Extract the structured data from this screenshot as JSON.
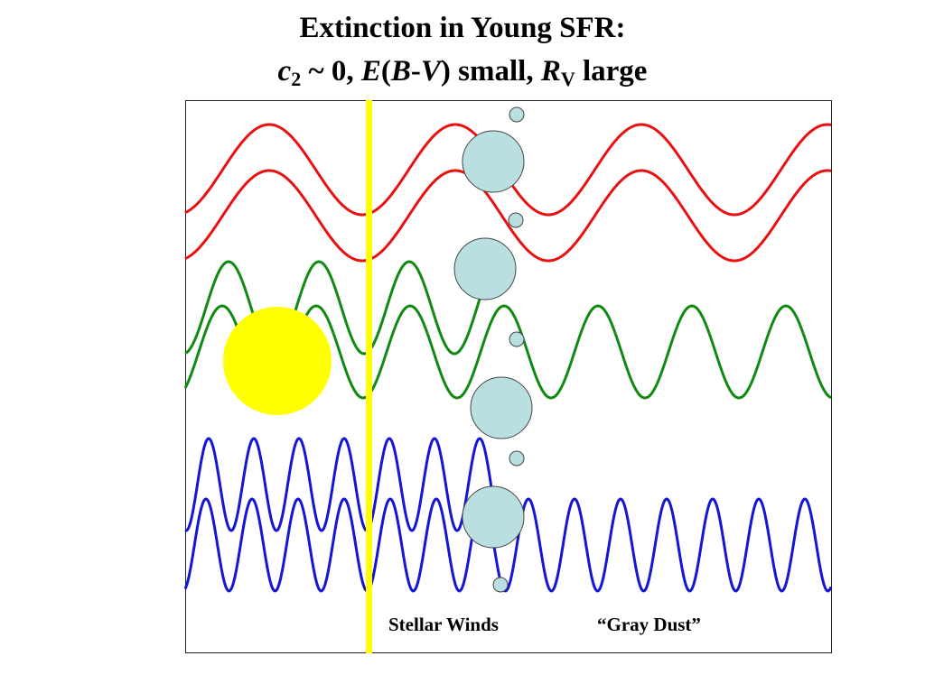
{
  "title": {
    "line1": "Extinction in Young SFR:",
    "line2": {
      "c": "c",
      "c_sub": "2",
      "tilde_zero": " ~ 0, ",
      "E": "E",
      "open_paren": "(",
      "B": "B",
      "dash": "-",
      "V": "V",
      "close_paren": ")",
      "small": " small, ",
      "R": "R",
      "R_sub": "V",
      "large": " large"
    }
  },
  "labels": {
    "stellar_winds": "Stellar Winds",
    "gray_dust": "“Gray Dust”"
  },
  "colors": {
    "red_wave": "#e81010",
    "green_wave": "#118a11",
    "blue_wave": "#1515d6",
    "star": "#ffff00",
    "dust_grain_fill": "#b9dfe0",
    "dust_grain_stroke": "#444444",
    "frame": "#222222"
  },
  "icons": {
    "star": "sun-circle",
    "barrier": "vertical-yellow-bar",
    "dust": "dust-grain-circle"
  }
}
